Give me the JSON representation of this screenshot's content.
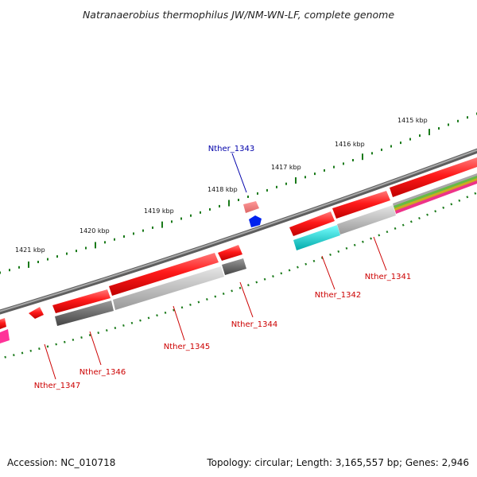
{
  "title": "Natranaerobius thermophilus JW/NM-WN-LF, complete genome",
  "footer": {
    "accession": "Accession: NC_010718",
    "summary": "Topology: circular; Length: 3,165,557 bp; Genes: 2,946"
  },
  "scale_labels": [
    "1415 kbp",
    "1416 kbp",
    "1417 kbp",
    "1418 kbp",
    "1419 kbp",
    "1420 kbp",
    "1421 kbp"
  ],
  "gene_labels": [
    {
      "id": "g1343",
      "text": "Nther_1343",
      "color": "#0000aa"
    },
    {
      "id": "g1341",
      "text": "Nther_1341",
      "color": "#cc0000"
    },
    {
      "id": "g1342",
      "text": "Nther_1342",
      "color": "#cc0000"
    },
    {
      "id": "g1344",
      "text": "Nther_1344",
      "color": "#cc0000"
    },
    {
      "id": "g1345",
      "text": "Nther_1345",
      "color": "#cc0000"
    },
    {
      "id": "g1346",
      "text": "Nther_1346",
      "color": "#cc0000"
    },
    {
      "id": "g1347",
      "text": "Nther_1347",
      "color": "#cc0000"
    }
  ],
  "colors": {
    "backbone": "#777777",
    "ticks": "#1a7a1a",
    "cds": "#ee0000",
    "gene": "#666666",
    "gene_light": "#bbbbbb",
    "rna": "#00cccc",
    "trna": "#0000ee",
    "pink": "#ee4488"
  }
}
